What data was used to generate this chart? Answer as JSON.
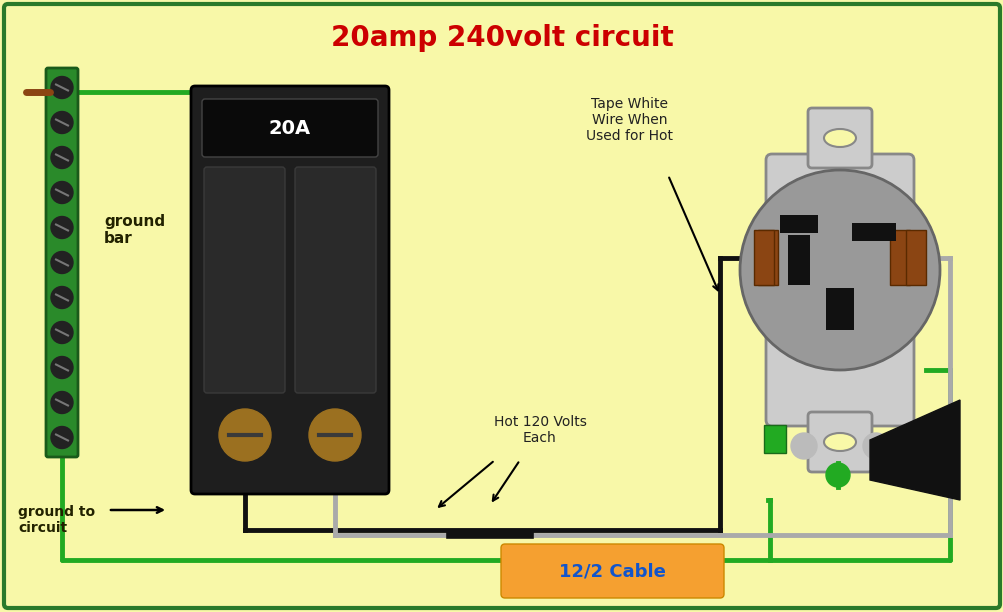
{
  "title": "20amp 240volt circuit",
  "title_color": "#cc0000",
  "title_fontsize": 20,
  "bg_color": "#f8f8a8",
  "border_color": "#2a7a2a",
  "ground_bar_color": "#2a8a2a",
  "breaker_color": "#1e1e1e",
  "wire_green": "#22aa22",
  "wire_black": "#111111",
  "wire_gray": "#aaaaaa",
  "label_ground_bar": "ground\nbar",
  "label_ground_circuit": "ground to\ncircuit",
  "label_tape_white": "Tape White\nWire When\nUsed for Hot",
  "label_hot": "Hot 120 Volts\nEach",
  "label_cable": "12/2 Cable",
  "label_20A": "20A"
}
